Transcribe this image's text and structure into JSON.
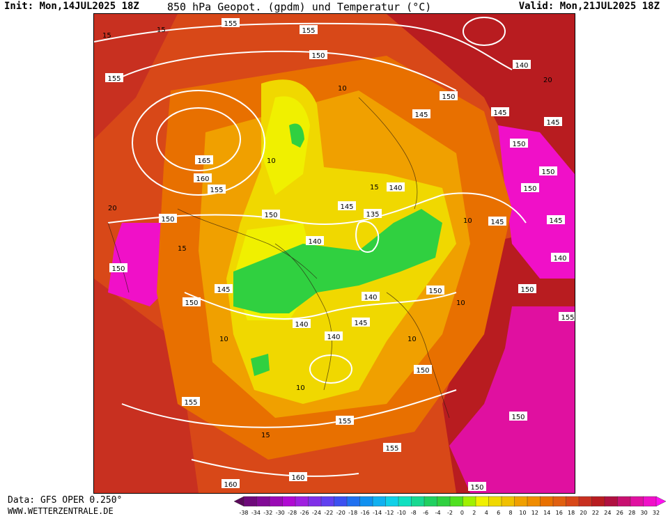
{
  "header": {
    "init": "Init: Mon,14JUL2025 18Z",
    "title": "850 hPa Geopot. (gpdm) und Temperatur (°C)",
    "valid": "Valid: Mon,21JUL2025 18Z"
  },
  "footer": {
    "data_source": "Data: GFS OPER 0.250°",
    "website": "WWW.WETTERZENTRALE.DE"
  },
  "legend": {
    "ticks": [
      "-38",
      "-34",
      "-32",
      "-30",
      "-28",
      "-26",
      "-24",
      "-22",
      "-20",
      "-18",
      "-16",
      "-14",
      "-12",
      "-10",
      "-8",
      "-6",
      "-4",
      "-2",
      "0",
      "2",
      "4",
      "6",
      "8",
      "10",
      "12",
      "14",
      "16",
      "18",
      "20",
      "22",
      "24",
      "26",
      "28",
      "30",
      "32"
    ],
    "colors": [
      "#5a0a5a",
      "#6e0a7a",
      "#820a96",
      "#9a0ab4",
      "#b00ad2",
      "#a020e0",
      "#8030e8",
      "#6040f0",
      "#3c50f0",
      "#2070f0",
      "#1090f0",
      "#10b0f0",
      "#10d0e8",
      "#10e0c0",
      "#18d890",
      "#20d060",
      "#30d040",
      "#50e020",
      "#a0f000",
      "#f0f000",
      "#f0d800",
      "#f0c000",
      "#f0a000",
      "#f08c00",
      "#e87000",
      "#e06010",
      "#d84818",
      "#c83020",
      "#b81c20",
      "#b01040",
      "#c81070",
      "#e010a0",
      "#f010c8",
      "#ff10f0"
    ]
  },
  "map": {
    "geopotential_labels": [
      "155",
      "155",
      "150",
      "155",
      "140",
      "150",
      "145",
      "145",
      "145",
      "150",
      "150",
      "165",
      "160",
      "155",
      "150",
      "140",
      "135",
      "150",
      "145",
      "145",
      "150",
      "150",
      "145",
      "140",
      "140",
      "140",
      "150",
      "150",
      "145",
      "150",
      "140",
      "145",
      "155",
      "140",
      "150",
      "155",
      "155",
      "155",
      "160",
      "160",
      "150",
      "150"
    ],
    "temperature_labels": [
      "15",
      "15",
      "20",
      "10",
      "10",
      "15",
      "10",
      "10",
      "20",
      "10",
      "15",
      "10",
      "15",
      "10"
    ],
    "colors": {
      "ocean_cold": "#f0f000",
      "warm": "#e06010",
      "hot": "#b81c20",
      "extreme": "#f010c8",
      "cold_core": "#30d040"
    }
  }
}
